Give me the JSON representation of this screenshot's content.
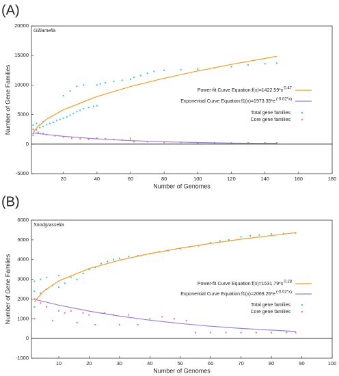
{
  "chart_data": [
    {
      "type": "scatter",
      "panel_label": "(A)",
      "subtitle": "Gilliamella",
      "x_label": "Number of Genomes",
      "y_label": "Number of Gene Families",
      "xlim": [
        1,
        180
      ],
      "xticks": [
        20,
        40,
        60,
        80,
        100,
        120,
        140,
        160,
        180
      ],
      "ylim": [
        -5000,
        20000
      ],
      "yticks": [
        -5000,
        0,
        5000,
        10000,
        15000,
        20000
      ],
      "hline": 0,
      "series": [
        {
          "name": "Total gene families",
          "mode": "markers",
          "color": "#2fc7c7",
          "x": [
            2,
            2,
            4,
            4,
            6,
            8,
            8,
            10,
            12,
            14,
            16,
            18,
            20,
            20,
            22,
            24,
            24,
            26,
            28,
            28,
            30,
            32,
            32,
            35,
            38,
            40,
            40,
            42,
            45,
            50,
            55,
            60,
            62,
            66,
            70,
            74,
            80,
            90,
            100,
            110,
            120,
            130,
            140,
            147
          ],
          "values": [
            1800,
            3200,
            2400,
            3500,
            2800,
            3000,
            3800,
            3300,
            3500,
            3700,
            4000,
            4200,
            4400,
            8200,
            4600,
            4900,
            9000,
            5200,
            5500,
            9800,
            5700,
            6000,
            10000,
            6200,
            6400,
            6500,
            10000,
            10200,
            10400,
            10600,
            10800,
            11000,
            11300,
            11600,
            12000,
            12300,
            12500,
            12600,
            12700,
            12900,
            13100,
            13400,
            13600,
            13700
          ]
        },
        {
          "name": "Core gene families",
          "mode": "markers",
          "color": "#f2688c",
          "x": [
            2,
            2,
            5,
            8,
            10,
            15,
            20,
            25,
            30,
            35,
            40,
            45,
            50,
            55,
            60,
            62,
            70,
            80,
            90,
            100,
            110,
            120,
            130,
            140,
            147
          ],
          "values": [
            2500,
            1500,
            2000,
            1800,
            1600,
            1400,
            1200,
            1000,
            900,
            800,
            1000,
            900,
            800,
            700,
            900,
            400,
            400,
            300,
            300,
            200,
            200,
            200,
            200,
            200,
            200
          ]
        },
        {
          "name": "Power-fit Curve Equation:f(x)=1422.59*x",
          "superscript": "0.47",
          "mode": "line",
          "color": "#f39a26",
          "x": [
            2,
            5,
            10,
            20,
            40,
            60,
            80,
            100,
            120,
            147
          ],
          "values": [
            1972,
            3030,
            4197,
            5815,
            8055,
            9746,
            11155,
            12388,
            13500,
            14860
          ]
        },
        {
          "name": "Exponential Curve Equation:f1(x)=1973.35*e",
          "superscript": "(-0.02*x)",
          "mode": "line",
          "color": "#9b7fd6",
          "x": [
            2,
            10,
            20,
            40,
            60,
            80,
            100,
            120,
            147
          ],
          "values": [
            1896,
            1616,
            1323,
            887,
            595,
            399,
            267,
            179,
            104
          ]
        }
      ]
    },
    {
      "type": "scatter",
      "panel_label": "(B)",
      "subtitle": "Snodgrassella",
      "x_label": "Number of Genomes",
      "y_label": "Number of Gene Families",
      "xlim": [
        1,
        100
      ],
      "xticks": [
        10,
        20,
        30,
        40,
        50,
        60,
        70,
        80,
        90,
        100
      ],
      "ylim": [
        -1000,
        6000
      ],
      "yticks": [
        -1000,
        0,
        1000,
        2000,
        3000,
        4000,
        5000,
        6000
      ],
      "hline": 0,
      "series": [
        {
          "name": "Total gene families",
          "mode": "markers",
          "color": "#2fc7c7",
          "x": [
            2,
            2,
            2,
            4,
            4,
            6,
            6,
            8,
            10,
            10,
            12,
            14,
            16,
            18,
            20,
            22,
            24,
            26,
            28,
            30,
            33,
            36,
            40,
            43,
            46,
            50,
            53,
            56,
            60,
            63,
            66,
            70,
            73,
            76,
            80,
            84,
            88
          ],
          "values": [
            1600,
            2400,
            2900,
            2300,
            3000,
            2500,
            3100,
            2700,
            2600,
            3200,
            2800,
            3100,
            3000,
            3300,
            3500,
            3600,
            3800,
            3900,
            4000,
            4050,
            4150,
            4200,
            4300,
            4400,
            4450,
            4550,
            4650,
            4700,
            4850,
            4950,
            5000,
            5150,
            5200,
            5250,
            5300,
            5320,
            5350
          ]
        },
        {
          "name": "Core gene families",
          "mode": "markers",
          "color": "#f2688c",
          "x": [
            2,
            2,
            4,
            6,
            8,
            10,
            12,
            14,
            16,
            18,
            20,
            22,
            25,
            28,
            30,
            33,
            36,
            40,
            44,
            48,
            52,
            55,
            60,
            65,
            70,
            75,
            80,
            85,
            88
          ],
          "values": [
            2000,
            1000,
            1800,
            1600,
            900,
            1400,
            1300,
            1400,
            800,
            1300,
            1200,
            700,
            1300,
            1200,
            700,
            1200,
            700,
            1000,
            1100,
            1000,
            900,
            300,
            300,
            300,
            300,
            300,
            300,
            300,
            300
          ]
        },
        {
          "name": "Power-fit Curve Equation:f(x)=1531.79*x",
          "superscript": "0.28",
          "mode": "line",
          "color": "#f39a26",
          "x": [
            2,
            5,
            10,
            20,
            30,
            40,
            50,
            60,
            70,
            88
          ],
          "values": [
            1860,
            2404,
            2918,
            3545,
            3970,
            4303,
            4580,
            4819,
            5034,
            5366
          ]
        },
        {
          "name": "Exponential Curve Equation:f1(x)=2069.26*e",
          "superscript": "(-0.02*x)",
          "mode": "line",
          "color": "#9b7fd6",
          "x": [
            2,
            10,
            20,
            30,
            40,
            50,
            60,
            70,
            88
          ],
          "values": [
            1988,
            1694,
            1387,
            1136,
            930,
            761,
            623,
            510,
            356
          ]
        }
      ]
    }
  ]
}
